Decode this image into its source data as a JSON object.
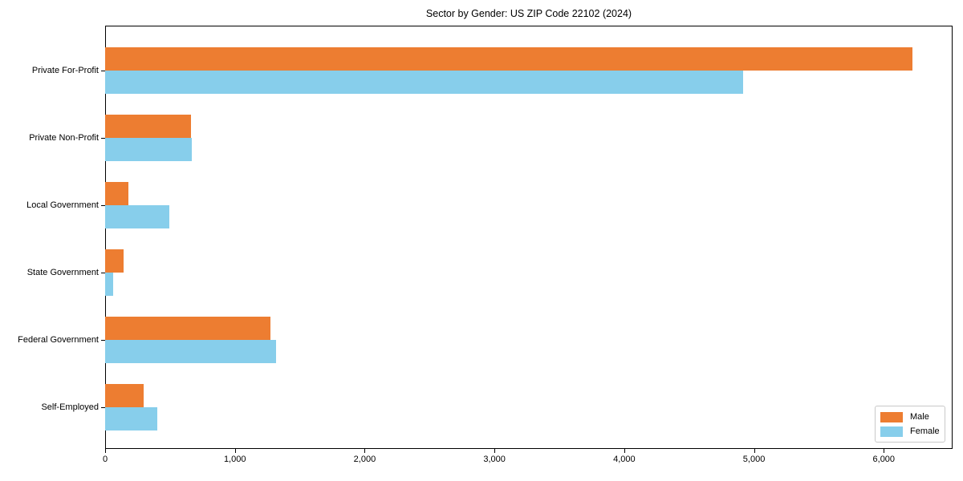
{
  "chart_data": {
    "type": "bar",
    "orientation": "horizontal",
    "title": "Sector by Gender: US ZIP Code 22102 (2024)",
    "categories": [
      "Private For-Profit",
      "Private Non-Profit",
      "Local Government",
      "State Government",
      "Federal Government",
      "Self-Employed"
    ],
    "series": [
      {
        "name": "Male",
        "color": "#ED7D31",
        "values": [
          6220,
          660,
          180,
          145,
          1275,
          295
        ]
      },
      {
        "name": "Female",
        "color": "#87CEEB",
        "values": [
          4915,
          665,
          495,
          60,
          1315,
          400
        ]
      }
    ],
    "x_ticks": [
      0,
      1000,
      2000,
      3000,
      4000,
      5000,
      6000
    ],
    "x_tick_labels": [
      "0",
      "1,000",
      "2,000",
      "3,000",
      "4,000",
      "5,000",
      "6,000"
    ],
    "xlim": [
      0,
      6530
    ],
    "xlabel": "",
    "ylabel": "",
    "grid": false,
    "legend_position": "lower right",
    "background_color": "#ffffff",
    "axis_color": "#000000"
  }
}
